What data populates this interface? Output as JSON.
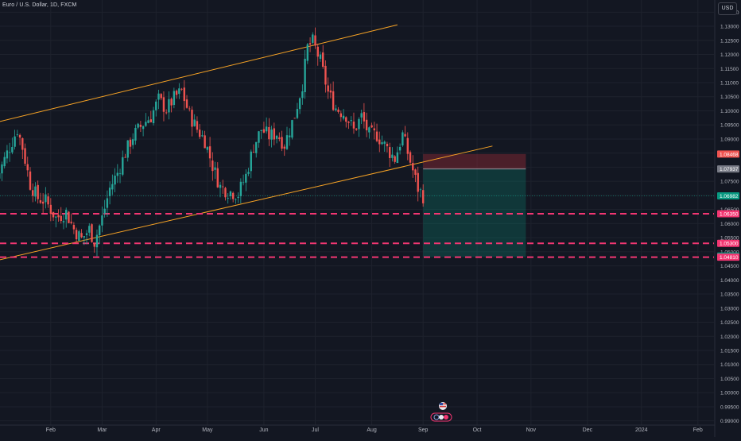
{
  "header": {
    "title": "Euro / U.S. Dollar, 1D, FXCM",
    "currency": "USD"
  },
  "colors": {
    "background": "#131722",
    "up": "#26a69a",
    "down": "#ef5350",
    "channel": "#f7a325",
    "level_line": "#f23672",
    "grid": "#1e222d"
  },
  "chart_data": {
    "type": "candlestick",
    "instrument": "EURUSD",
    "interval": "1D",
    "ylim": [
      0.9885,
      1.1365
    ],
    "y_ticks": [
      "1.13500",
      "1.13000",
      "1.12500",
      "1.12000",
      "1.11500",
      "1.11000",
      "1.10500",
      "1.10000",
      "1.09500",
      "1.09000",
      "1.08500",
      "1.08000",
      "1.07500",
      "1.07000",
      "1.06500",
      "1.06000",
      "1.05500",
      "1.05000",
      "1.04500",
      "1.04000",
      "1.03500",
      "1.03000",
      "1.02500",
      "1.02000",
      "1.01500",
      "1.01000",
      "1.00500",
      "1.00000",
      "0.99500",
      "0.99000"
    ],
    "x_ticks": [
      "Feb",
      "Mar",
      "Apr",
      "May",
      "Jun",
      "Jul",
      "Aug",
      "Sep",
      "Oct",
      "Nov",
      "Dec",
      "2024",
      "Feb"
    ],
    "x_tick_index": [
      21,
      41,
      62,
      82,
      104,
      124,
      146,
      166,
      187,
      208,
      230,
      251,
      273
    ],
    "anchors": [
      [
        0,
        1.076
      ],
      [
        4,
        1.085
      ],
      [
        8,
        1.0935
      ],
      [
        10,
        1.087
      ],
      [
        13,
        1.074
      ],
      [
        16,
        1.069
      ],
      [
        19,
        1.068
      ],
      [
        23,
        1.062
      ],
      [
        27,
        1.064
      ],
      [
        30,
        1.058
      ],
      [
        33,
        1.0545
      ],
      [
        36,
        1.058
      ],
      [
        38,
        1.0535
      ],
      [
        41,
        1.062
      ],
      [
        44,
        1.0725
      ],
      [
        47,
        1.078
      ],
      [
        50,
        1.085
      ],
      [
        53,
        1.091
      ],
      [
        57,
        1.0955
      ],
      [
        60,
        1.098
      ],
      [
        63,
        1.104
      ],
      [
        66,
        1.1005
      ],
      [
        69,
        1.1045
      ],
      [
        72,
        1.107
      ],
      [
        75,
        1.0985
      ],
      [
        78,
        1.0935
      ],
      [
        81,
        1.0895
      ],
      [
        84,
        1.0805
      ],
      [
        87,
        1.073
      ],
      [
        90,
        1.0715
      ],
      [
        94,
        1.0705
      ],
      [
        97,
        1.077
      ],
      [
        100,
        1.0875
      ],
      [
        103,
        1.0935
      ],
      [
        106,
        1.091
      ],
      [
        109,
        1.092
      ],
      [
        112,
        1.088
      ],
      [
        116,
        1.0985
      ],
      [
        119,
        1.1095
      ],
      [
        121,
        1.1225
      ],
      [
        123,
        1.1245
      ],
      [
        126,
        1.1175
      ],
      [
        129,
        1.1065
      ],
      [
        132,
        1.101
      ],
      [
        136,
        1.0985
      ],
      [
        139,
        1.093
      ],
      [
        142,
        1.098
      ],
      [
        145,
        1.0915
      ],
      [
        148,
        1.0915
      ],
      [
        152,
        1.0865
      ],
      [
        155,
        1.083
      ],
      [
        158,
        1.0915
      ],
      [
        161,
        1.082
      ],
      [
        164,
        1.0725
      ],
      [
        166,
        1.0698
      ]
    ],
    "channel_upper": {
      "x1": -2,
      "y1": 1.0955,
      "x2": 156,
      "y2": 1.1305
    },
    "channel_lower": {
      "x1": -2,
      "y1": 1.0465,
      "x2": 193,
      "y2": 1.0875
    },
    "levels": [
      {
        "price": 1.0635,
        "label": "1.06350"
      },
      {
        "price": 1.053,
        "label": "1.05300"
      },
      {
        "price": 1.0481,
        "label": "1.04810"
      }
    ],
    "position": {
      "type": "short",
      "x_start": 166,
      "x_end": 206,
      "stop": 1.08468,
      "entry": 1.07937,
      "target": 1.0481
    },
    "last_price": 1.06982,
    "price_labels": [
      {
        "label": "1.08468",
        "price": 1.08468,
        "color": "#ef5350"
      },
      {
        "label": "1.07937",
        "price": 1.07937,
        "color": "#787b86"
      },
      {
        "label": "1.06982",
        "price": 1.06982,
        "color": "#089981"
      },
      {
        "label": "1.06350",
        "price": 1.0635,
        "color": "#f23672"
      },
      {
        "label": "1.05300",
        "price": 1.053,
        "color": "#f23672"
      },
      {
        "label": "1.04846",
        "price": 1.04846,
        "color": "#089981"
      },
      {
        "label": "1.04810",
        "price": 1.0481,
        "color": "#f23672"
      }
    ]
  }
}
